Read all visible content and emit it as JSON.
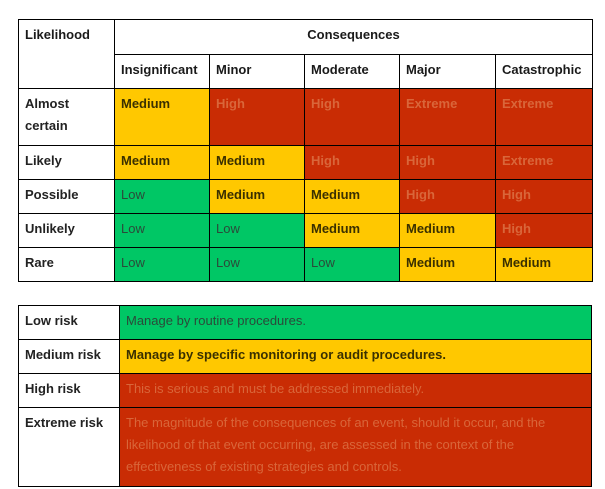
{
  "matrix": {
    "likelihood_header": "Likelihood",
    "consequences_header": "Consequences",
    "columns": [
      "Insignificant",
      "Minor",
      "Moderate",
      "Major",
      "Catastrophic"
    ],
    "rows": [
      {
        "label": "Almost certain",
        "cells": [
          {
            "text": "Medium",
            "level": "medium"
          },
          {
            "text": "High",
            "level": "high"
          },
          {
            "text": "High",
            "level": "high"
          },
          {
            "text": "Extreme",
            "level": "extreme"
          },
          {
            "text": "Extreme",
            "level": "extreme"
          }
        ]
      },
      {
        "label": "Likely",
        "cells": [
          {
            "text": "Medium",
            "level": "medium"
          },
          {
            "text": "Medium",
            "level": "medium"
          },
          {
            "text": "High",
            "level": "high"
          },
          {
            "text": "High",
            "level": "high"
          },
          {
            "text": "Extreme",
            "level": "extreme"
          }
        ]
      },
      {
        "label": "Possible",
        "cells": [
          {
            "text": "Low",
            "level": "low"
          },
          {
            "text": "Medium",
            "level": "medium"
          },
          {
            "text": "Medium",
            "level": "medium"
          },
          {
            "text": "High",
            "level": "high"
          },
          {
            "text": "High",
            "level": "high"
          }
        ]
      },
      {
        "label": "Unlikely",
        "cells": [
          {
            "text": "Low",
            "level": "low"
          },
          {
            "text": "Low",
            "level": "low"
          },
          {
            "text": "Medium",
            "level": "medium"
          },
          {
            "text": "Medium",
            "level": "medium"
          },
          {
            "text": "High",
            "level": "high"
          }
        ]
      },
      {
        "label": "Rare",
        "cells": [
          {
            "text": "Low",
            "level": "low"
          },
          {
            "text": "Low",
            "level": "low"
          },
          {
            "text": "Low",
            "level": "low"
          },
          {
            "text": "Medium",
            "level": "medium"
          },
          {
            "text": "Medium",
            "level": "medium"
          }
        ]
      }
    ]
  },
  "legend": [
    {
      "label": "Low risk",
      "level": "low",
      "text": "Manage by routine procedures."
    },
    {
      "label": "Medium risk",
      "level": "medium",
      "text": "Manage by specific monitoring or audit procedures."
    },
    {
      "label": "High risk",
      "level": "high",
      "text": "This is serious and must be addressed immediately."
    },
    {
      "label": "Extreme risk",
      "level": "extreme",
      "text": "The magnitude of the consequences of an event, should it occur, and the likelihood of that event occurring, are assessed in the context of the effectiveness of existing strategies and controls."
    }
  ],
  "colors": {
    "low": "#00c765",
    "medium": "#ffc800",
    "high": "#c92c04",
    "extreme": "#c92c04"
  }
}
